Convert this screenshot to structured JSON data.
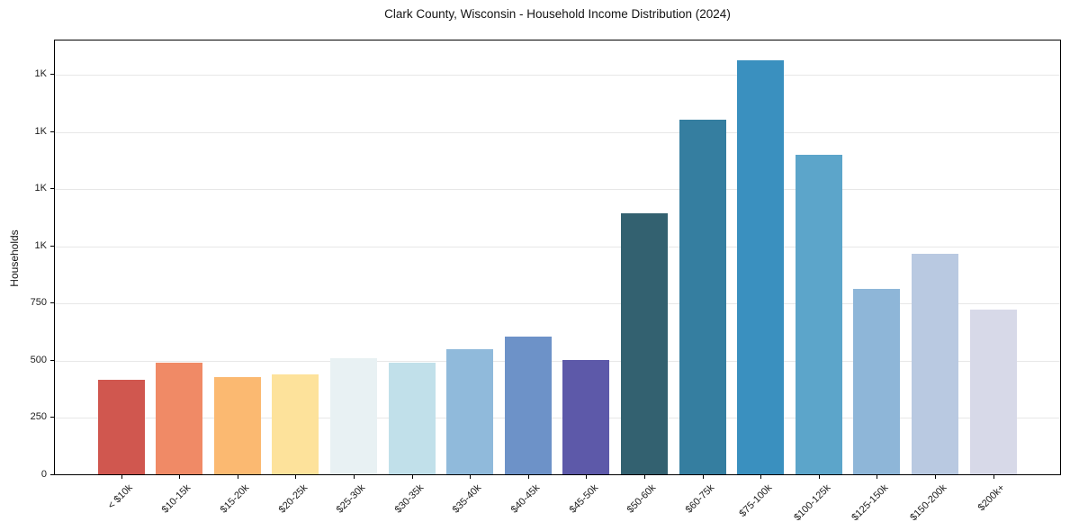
{
  "figure": {
    "background": "#ffffff"
  },
  "chart_data": {
    "type": "bar",
    "title": "Clark County, Wisconsin - Household Income Distribution (2024)",
    "xlabel": "",
    "ylabel": "Households",
    "categories": [
      "< $10k",
      "$10-15k",
      "$15-20k",
      "$20-25k",
      "$25-30k",
      "$30-35k",
      "$35-40k",
      "$40-45k",
      "$45-50k",
      "$50-60k",
      "$60-75k",
      "$75-100k",
      "$100-125k",
      "$125-150k",
      "$150-200k",
      "$200k+"
    ],
    "values": [
      415,
      490,
      424,
      437,
      508,
      490,
      548,
      603,
      498,
      1140,
      1549,
      1809,
      1396,
      810,
      966,
      722
    ],
    "bar_colors": [
      "#d0574f",
      "#f08a66",
      "#fbb971",
      "#fde29b",
      "#e8f1f3",
      "#c1e0ea",
      "#90badb",
      "#6d92c8",
      "#5d59a9",
      "#336170",
      "#357ea0",
      "#3a90bf",
      "#5ca5ca",
      "#8eb6d8",
      "#b9c9e1",
      "#d7d9e8"
    ],
    "ylim": [
      0,
      1905
    ],
    "yticks": [
      {
        "value": 0,
        "label": "0"
      },
      {
        "value": 250,
        "label": "250"
      },
      {
        "value": 500,
        "label": "500"
      },
      {
        "value": 750,
        "label": "750"
      },
      {
        "value": 1000,
        "label": "1K"
      },
      {
        "value": 1250,
        "label": "1K"
      },
      {
        "value": 1500,
        "label": "1K"
      },
      {
        "value": 1750,
        "label": "1K"
      }
    ],
    "grid": "horizontal",
    "legend": "none",
    "styling": {
      "grid_color": "#e7e7e7",
      "spine_color": "#000000",
      "text_color": "#1c1c1c"
    }
  }
}
